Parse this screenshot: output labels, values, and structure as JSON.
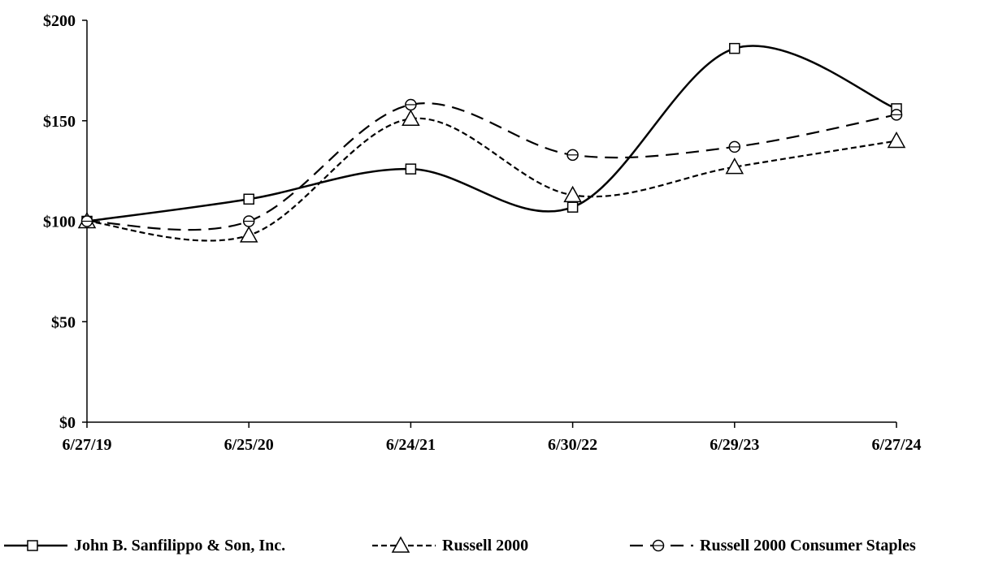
{
  "chart_data": {
    "type": "line",
    "title": "",
    "xlabel": "",
    "ylabel": "",
    "categories": [
      "6/27/19",
      "6/25/20",
      "6/24/21",
      "6/30/22",
      "6/29/23",
      "6/27/24"
    ],
    "y_ticks": [
      "$0",
      "$50",
      "$100",
      "$150",
      "$200"
    ],
    "ylim": [
      0,
      200
    ],
    "grid": false,
    "legend_position": "bottom",
    "series": [
      {
        "name": "John B. Sanfilippo & Son, Inc.",
        "values": [
          100,
          111,
          126,
          107,
          186,
          156
        ],
        "marker": "square",
        "line_style": "solid",
        "color": "#000000"
      },
      {
        "name": "Russell 2000",
        "values": [
          100,
          93,
          151,
          113,
          127,
          140
        ],
        "marker": "triangle",
        "line_style": "dotted-dash",
        "color": "#000000"
      },
      {
        "name": "Russell 2000 Consumer Staples",
        "values": [
          100,
          100,
          158,
          133,
          137,
          153
        ],
        "marker": "circle",
        "line_style": "long-dash",
        "color": "#000000"
      }
    ]
  }
}
